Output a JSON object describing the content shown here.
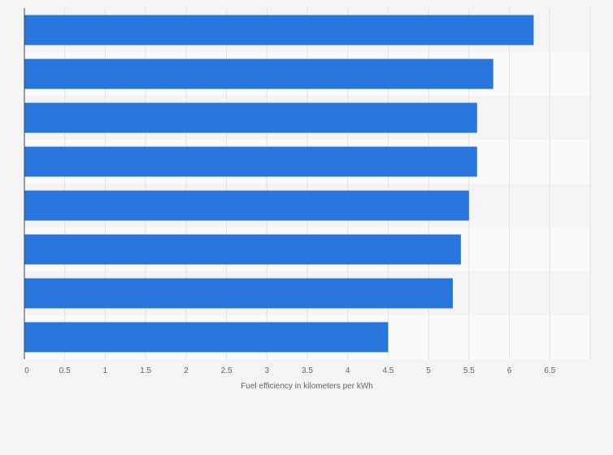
{
  "chart_data": {
    "type": "bar",
    "orientation": "horizontal",
    "categories": [
      "",
      "",
      "",
      "",
      "",
      "",
      "",
      ""
    ],
    "values": [
      6.3,
      5.8,
      5.6,
      5.6,
      5.5,
      5.4,
      5.3,
      4.5
    ],
    "xlabel": "Fuel efficiency in kilometers per kWh",
    "ylabel": "",
    "xlim": [
      0,
      7
    ],
    "xticks": [
      0,
      0.5,
      1,
      1.5,
      2,
      2.5,
      3,
      3.5,
      4,
      4.5,
      5,
      5.5,
      6,
      6.5
    ],
    "xtick_labels": [
      "0",
      "0.5",
      "1",
      "1.5",
      "2",
      "2.5",
      "3",
      "3.5",
      "4",
      "4.5",
      "5",
      "5.5",
      "6",
      "6.5"
    ],
    "grid": true,
    "legend": "none",
    "colors": {
      "bar": "#2876dd",
      "grid": "#e2e2e2",
      "band_light": "#fafafa",
      "band_dark": "#f4f4f4",
      "axis": "#444444"
    }
  }
}
